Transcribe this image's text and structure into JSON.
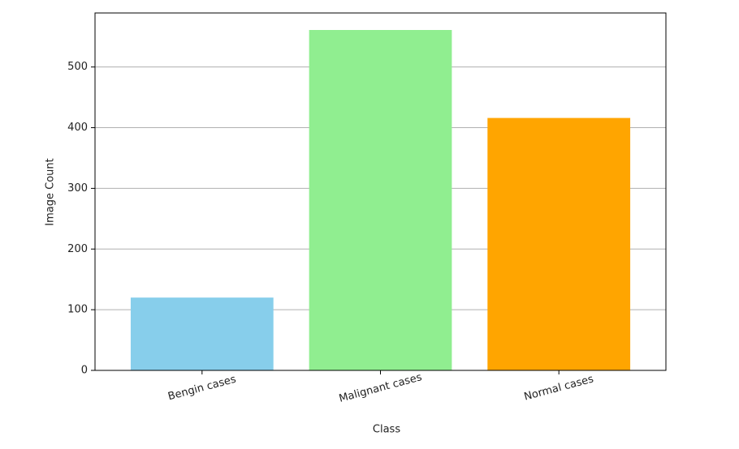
{
  "chart_data": {
    "type": "bar",
    "xlabel": "Class",
    "ylabel": "Image Count",
    "categories": [
      "Bengin cases",
      "Malignant cases",
      "Normal cases"
    ],
    "values": [
      120,
      561,
      416
    ],
    "colors": [
      "#87ceeb",
      "#90ee90",
      "#ffa500"
    ],
    "ylim": [
      0,
      589.05
    ],
    "yticks": [
      0,
      100,
      200,
      300,
      400,
      500
    ],
    "grid": true
  }
}
